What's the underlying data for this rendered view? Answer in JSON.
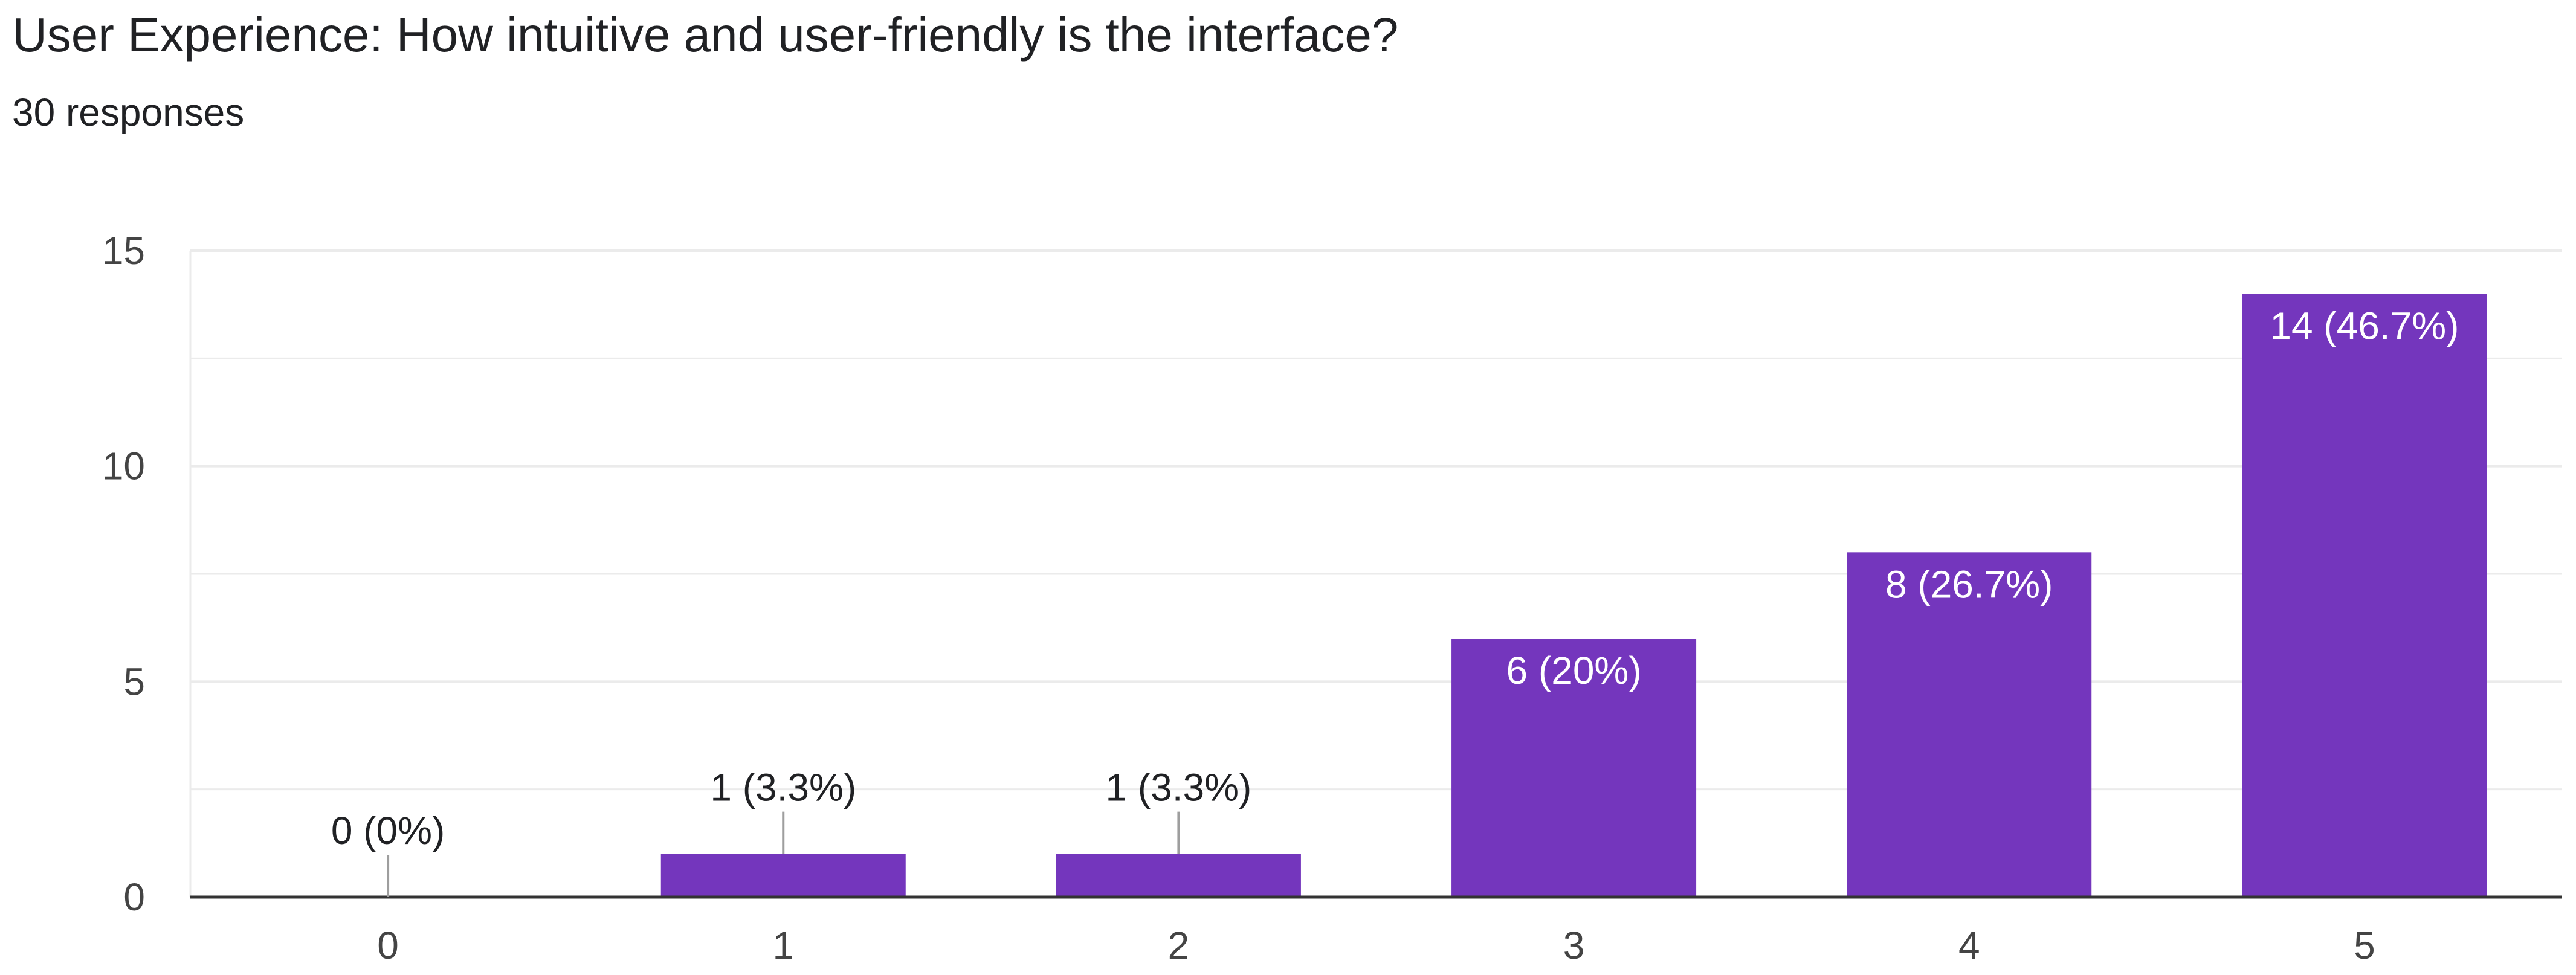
{
  "header": {
    "title": "User Experience: How intuitive and user-friendly is the interface?",
    "subtitle": "30 responses"
  },
  "colors": {
    "bar": "#7436bd",
    "grid": "#ebebeb",
    "axis": "#333333",
    "leader": "#9e9e9e",
    "label_outside": "#202124",
    "label_inside": "#ffffff"
  },
  "chart_data": {
    "type": "bar",
    "title": "User Experience: How intuitive and user-friendly is the interface?",
    "subtitle": "30 responses",
    "categories": [
      "0",
      "1",
      "2",
      "3",
      "4",
      "5"
    ],
    "values": [
      0,
      1,
      1,
      6,
      8,
      14
    ],
    "data_labels": [
      "0 (0%)",
      "1 (3.3%)",
      "1 (3.3%)",
      "6 (20%)",
      "8 (26.7%)",
      "14 (46.7%)"
    ],
    "y_ticks": [
      "0",
      "5",
      "10",
      "15"
    ],
    "ylim": [
      0,
      15
    ],
    "xlabel": "",
    "ylabel": "",
    "grid": true,
    "legend": "none"
  }
}
